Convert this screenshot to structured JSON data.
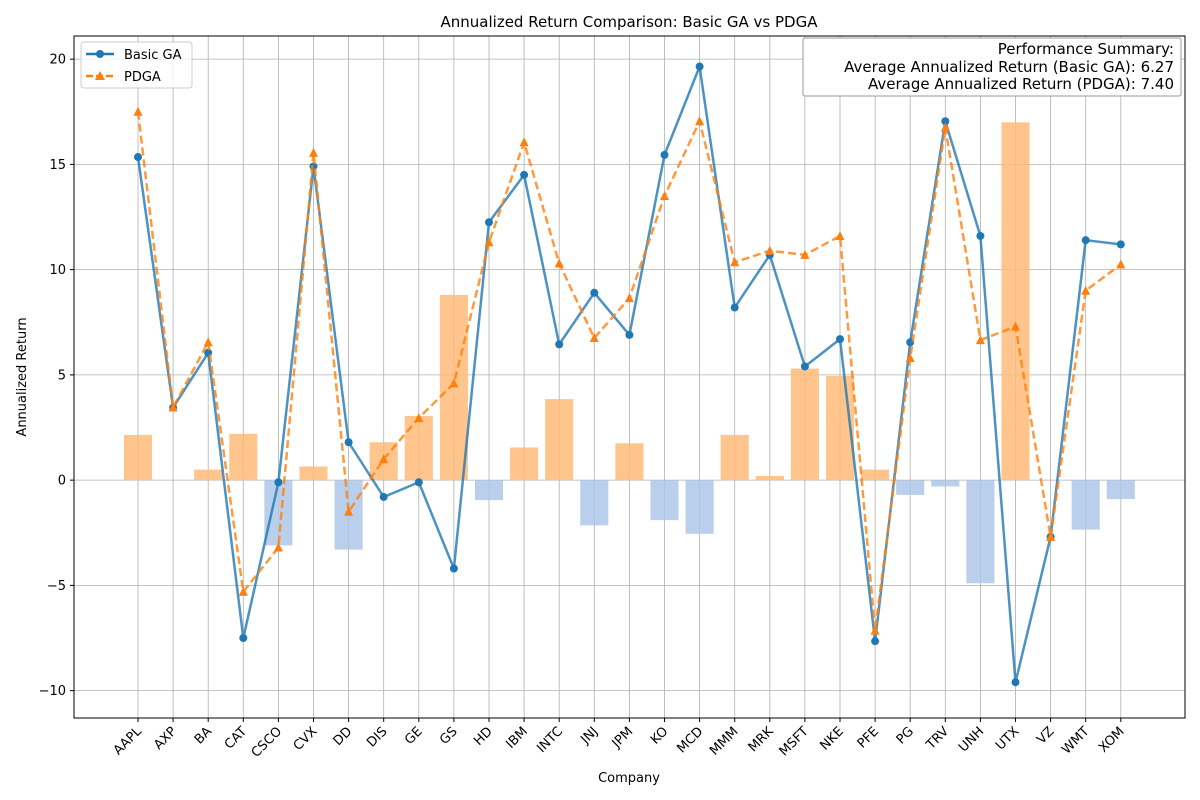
{
  "chart_data": {
    "type": "line",
    "title": "Annualized Return Comparison: Basic GA vs PDGA",
    "xlabel": "Company",
    "ylabel": "Annualized Return",
    "ylim": [
      -11.3,
      21.1
    ],
    "yticks": [
      -10,
      -5,
      0,
      5,
      10,
      15,
      20
    ],
    "ytick_labels": [
      "−10",
      "−5",
      "0",
      "5",
      "10",
      "15",
      "20"
    ],
    "grid": true,
    "legend_position": "top-left",
    "categories": [
      "AAPL",
      "AXP",
      "BA",
      "CAT",
      "CSCO",
      "CVX",
      "DD",
      "DIS",
      "GE",
      "GS",
      "HD",
      "IBM",
      "INTC",
      "JNJ",
      "JPM",
      "KO",
      "MCD",
      "MMM",
      "MRK",
      "MSFT",
      "NKE",
      "PFE",
      "PG",
      "TRV",
      "UNH",
      "UTX",
      "VZ",
      "WMT",
      "XOM"
    ],
    "series": [
      {
        "name": "Basic GA",
        "color": "#1f77b4",
        "style": "solid",
        "marker": "circle",
        "values": [
          15.35,
          3.45,
          6.05,
          -7.5,
          -0.1,
          14.9,
          1.8,
          -0.8,
          -0.1,
          -4.2,
          12.25,
          14.5,
          6.45,
          8.9,
          6.9,
          15.45,
          19.65,
          8.2,
          10.7,
          5.4,
          6.7,
          -7.65,
          6.55,
          17.05,
          11.6,
          -9.6,
          -2.7,
          11.4,
          11.2
        ]
      },
      {
        "name": "PDGA",
        "color": "#ff7f0e",
        "style": "dashed",
        "marker": "triangle",
        "values": [
          17.5,
          3.45,
          6.55,
          -5.3,
          -3.2,
          15.55,
          -1.5,
          1.0,
          2.95,
          4.6,
          11.3,
          16.05,
          10.3,
          6.75,
          8.65,
          13.5,
          17.05,
          10.35,
          10.9,
          10.7,
          11.6,
          -7.15,
          5.8,
          16.75,
          6.65,
          7.3,
          -2.7,
          9.0,
          10.25
        ]
      }
    ],
    "difference_bars": {
      "positive_color": "#ffbb78",
      "negative_color": "#aec7e8",
      "values": [
        2.15,
        0.0,
        0.5,
        2.2,
        -3.1,
        0.65,
        -3.3,
        1.8,
        3.05,
        8.8,
        -0.95,
        1.55,
        3.85,
        -2.15,
        1.75,
        -1.9,
        -2.55,
        2.15,
        0.2,
        5.3,
        4.95,
        0.5,
        -0.7,
        -0.3,
        -4.9,
        17.0,
        0.0,
        -2.35,
        -0.9
      ]
    },
    "summary": {
      "title": "Performance Summary:",
      "line1": "Average Annualized Return (Basic GA): 6.27",
      "line2": "Average Annualized Return (PDGA): 7.40"
    }
  }
}
